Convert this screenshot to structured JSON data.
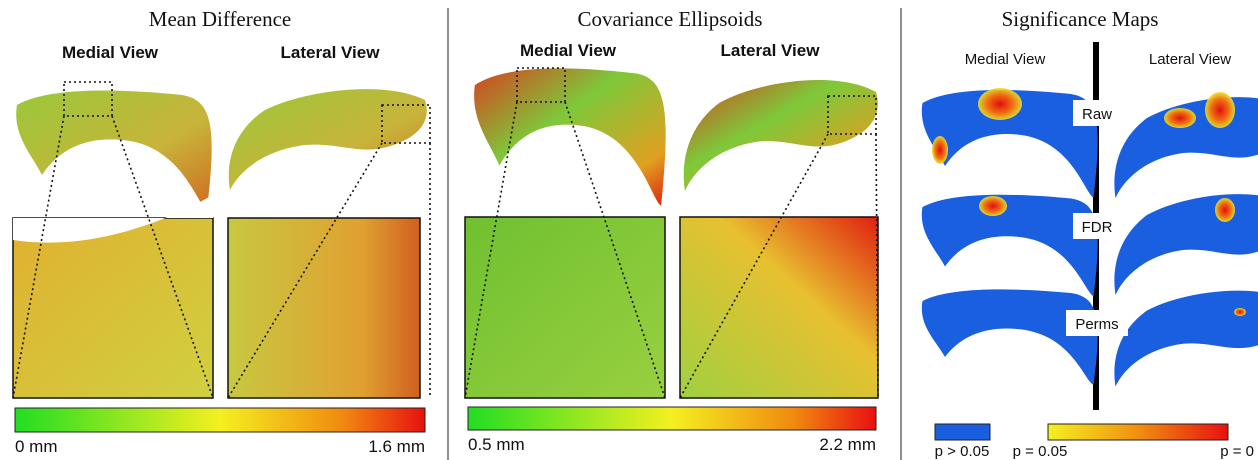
{
  "panels": [
    {
      "title": "Mean Difference",
      "views": [
        "Medial View",
        "Lateral View"
      ],
      "colorbar": {
        "min_label": "0 mm",
        "max_label": "1.6 mm"
      }
    },
    {
      "title": "Covariance Ellipsoids",
      "views": [
        "Medial View",
        "Lateral View"
      ],
      "colorbar": {
        "min_label": "0.5 mm",
        "max_label": "2.2 mm"
      }
    },
    {
      "title": "Significance Maps",
      "views": [
        "Medial View",
        "Lateral View"
      ],
      "rows": [
        "Raw",
        "FDR",
        "Perms"
      ],
      "legend": {
        "blue_label": "p > 0.05",
        "min_label": "p = 0.05",
        "max_label": "p = 0"
      }
    }
  ]
}
